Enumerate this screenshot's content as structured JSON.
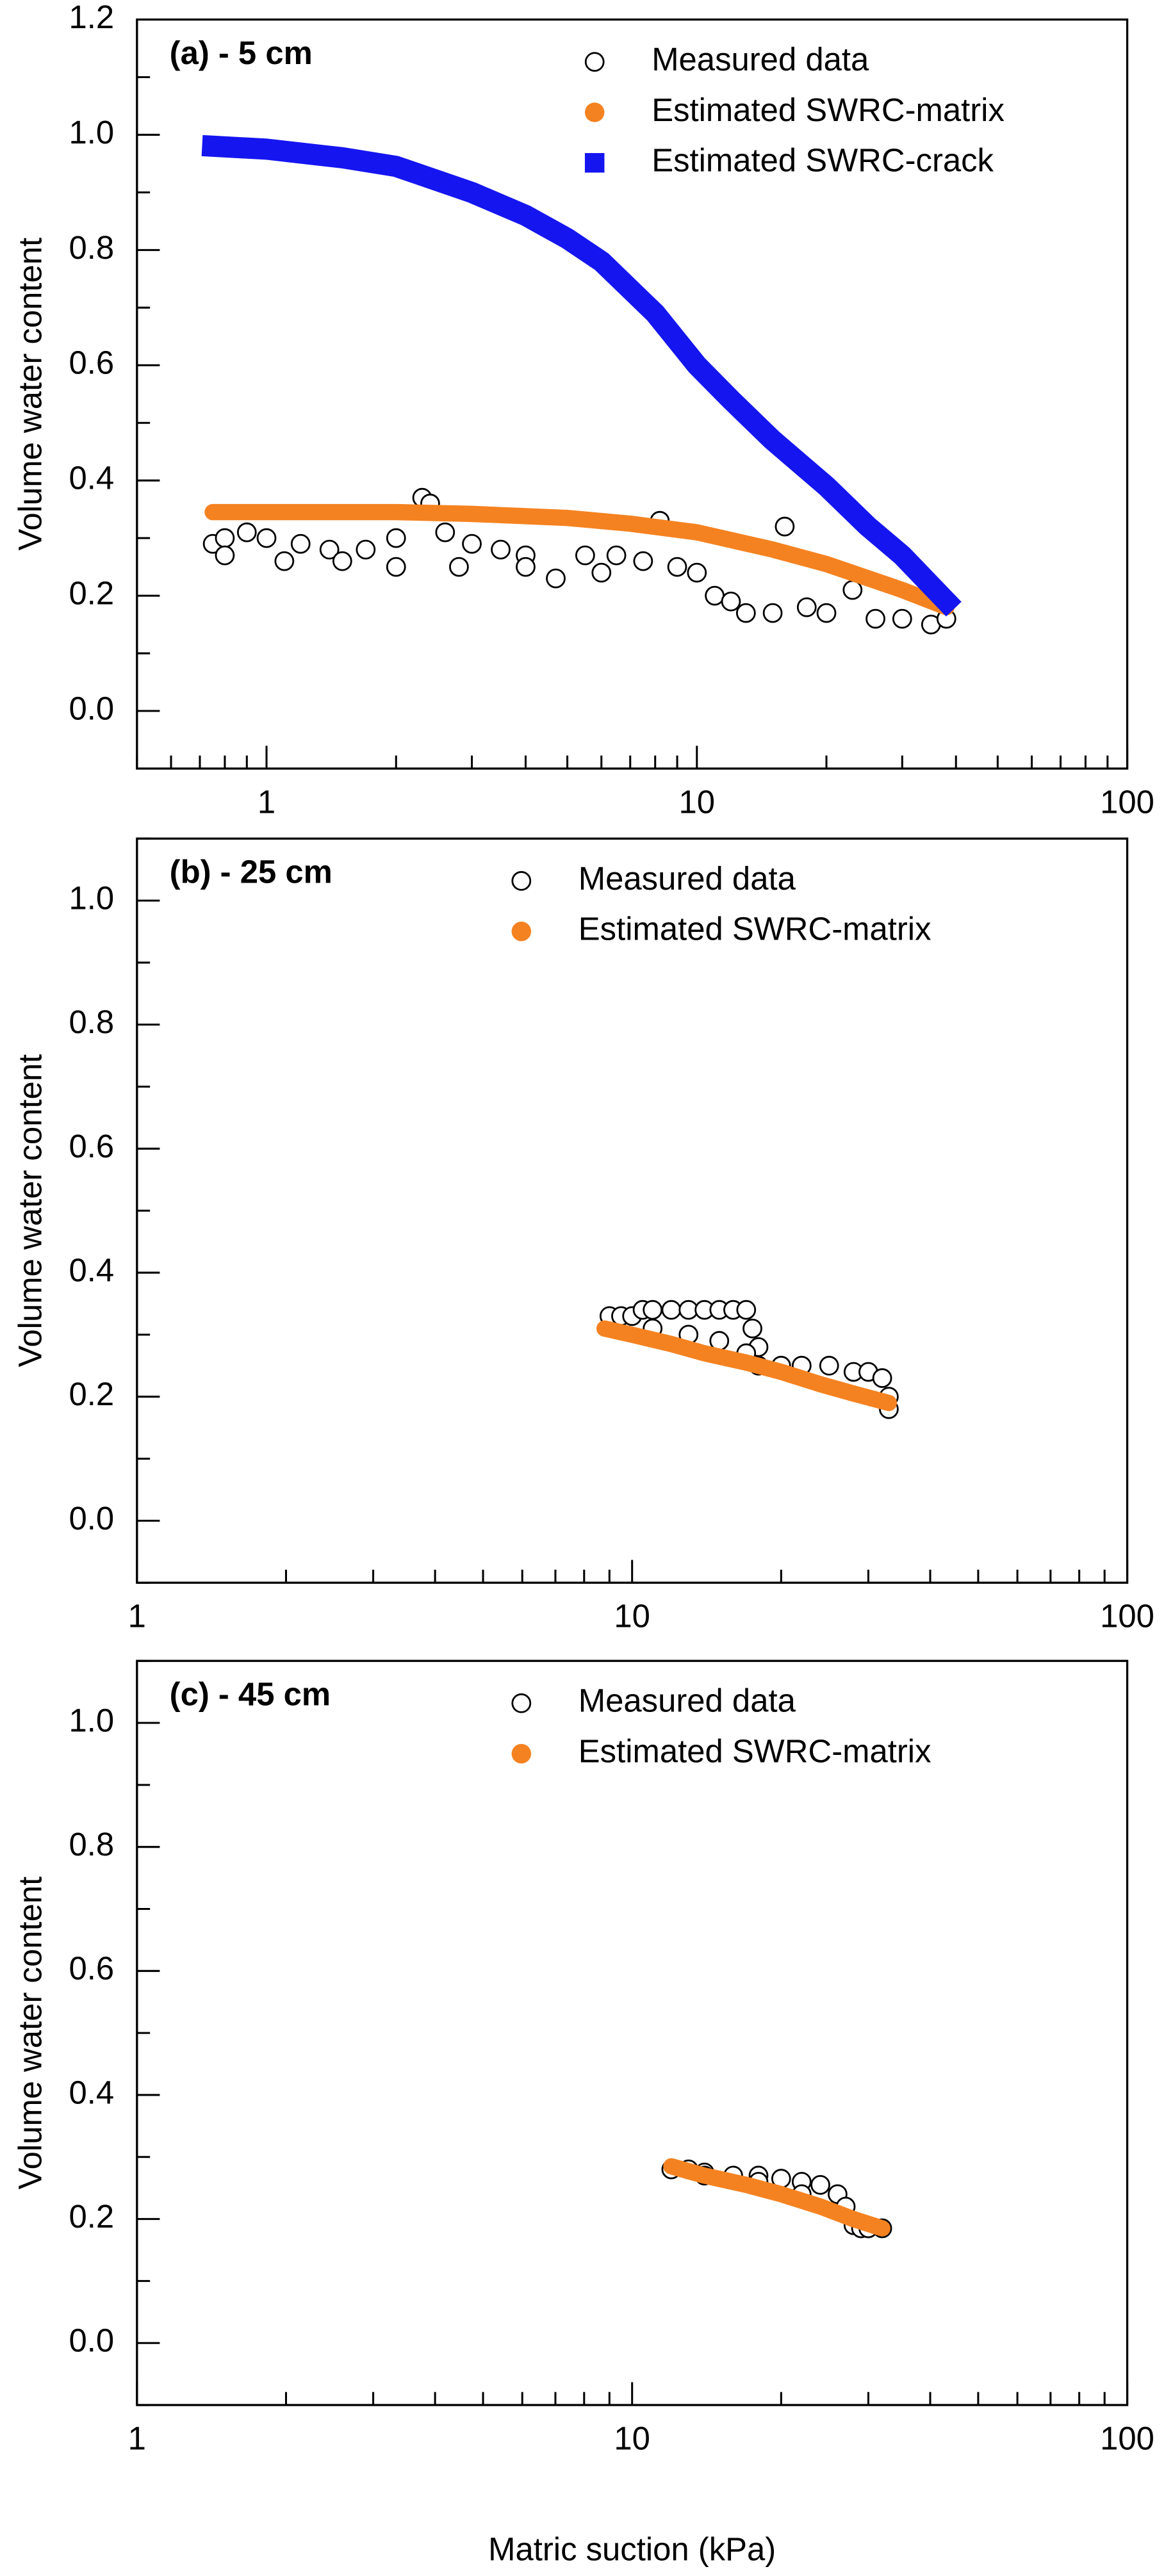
{
  "chart_data": [
    {
      "type": "scatter",
      "title": "(a) - 5 cm",
      "ylabel": "Volume water content",
      "xscale": "log",
      "xlim": [
        0.5,
        100
      ],
      "xticks": [
        1,
        10,
        100
      ],
      "xminorticks": [
        0.5,
        0.6,
        0.7,
        0.8,
        0.9,
        2,
        3,
        4,
        5,
        6,
        7,
        8,
        9,
        20,
        30,
        40,
        50,
        60,
        70,
        80,
        90
      ],
      "ylim": [
        -0.1,
        1.2
      ],
      "yticks": [
        {
          "value": 0,
          "label": "0.0"
        },
        {
          "value": 0.2,
          "label": "0.2"
        },
        {
          "value": 0.4,
          "label": "0.4"
        },
        {
          "value": 0.6,
          "label": "0.6"
        },
        {
          "value": 0.8,
          "label": "0.8"
        },
        {
          "value": 1.0,
          "label": "1.0"
        },
        {
          "value": 1.2,
          "label": "1.2"
        }
      ],
      "yminorticks": [
        -0.1,
        0.1,
        0.3,
        0.5,
        0.7,
        0.9,
        1.1
      ],
      "series": [
        {
          "name": "Measured data",
          "color": "#000000",
          "mode": "open-circle",
          "x": [
            0.75,
            0.8,
            0.9,
            1.0,
            1.2,
            1.4,
            1.7,
            2.0,
            2.3,
            2.4,
            2.6,
            3.0,
            3.5,
            4.0,
            4.7,
            5.5,
            6.5,
            7.5,
            8.2,
            9.0,
            10,
            11,
            12,
            13,
            15,
            16,
            18,
            20,
            23,
            26,
            30,
            35,
            38,
            0.8,
            1.1,
            1.5,
            2.0,
            2.8,
            4.0,
            6.0
          ],
          "values": [
            0.29,
            0.3,
            0.31,
            0.3,
            0.29,
            0.28,
            0.28,
            0.3,
            0.37,
            0.36,
            0.31,
            0.29,
            0.28,
            0.27,
            0.23,
            0.27,
            0.27,
            0.26,
            0.33,
            0.25,
            0.24,
            0.2,
            0.19,
            0.17,
            0.17,
            0.32,
            0.18,
            0.17,
            0.21,
            0.16,
            0.16,
            0.15,
            0.16,
            0.27,
            0.26,
            0.26,
            0.25,
            0.25,
            0.25,
            0.24
          ]
        },
        {
          "name": "Estimated SWRC-matrix",
          "color": "#f58220",
          "mode": "thick-line",
          "x": [
            0.75,
            1,
            2,
            3,
            5,
            7,
            10,
            15,
            20,
            30,
            38
          ],
          "values": [
            0.345,
            0.345,
            0.345,
            0.342,
            0.335,
            0.325,
            0.31,
            0.28,
            0.255,
            0.21,
            0.18
          ]
        },
        {
          "name": "Estimated SWRC-crack",
          "color": "#1515f0",
          "mode": "thick-line-square",
          "x": [
            0.75,
            1,
            1.5,
            2,
            3,
            4,
            5,
            6,
            8,
            10,
            12,
            15,
            20,
            25,
            30,
            38
          ],
          "values": [
            0.98,
            0.975,
            0.96,
            0.945,
            0.9,
            0.86,
            0.82,
            0.78,
            0.69,
            0.6,
            0.54,
            0.47,
            0.39,
            0.32,
            0.27,
            0.19
          ]
        }
      ]
    },
    {
      "type": "scatter",
      "title": "(b) - 25 cm",
      "ylabel": "Volume water content",
      "xscale": "log",
      "xlim": [
        1,
        100
      ],
      "xticks": [
        1,
        10,
        100
      ],
      "xminorticks": [
        2,
        3,
        4,
        5,
        6,
        7,
        8,
        9,
        20,
        30,
        40,
        50,
        60,
        70,
        80,
        90
      ],
      "ylim": [
        -0.1,
        1.1
      ],
      "yticks": [
        {
          "value": 0,
          "label": "0.0"
        },
        {
          "value": 0.2,
          "label": "0.2"
        },
        {
          "value": 0.4,
          "label": "0.4"
        },
        {
          "value": 0.6,
          "label": "0.6"
        },
        {
          "value": 0.8,
          "label": "0.8"
        },
        {
          "value": 1.0,
          "label": "1.0"
        }
      ],
      "yminorticks": [
        -0.1,
        0.1,
        0.3,
        0.5,
        0.7,
        0.9,
        1.1
      ],
      "series": [
        {
          "name": "Measured data",
          "color": "#000000",
          "mode": "open-circle",
          "x": [
            9,
            9.5,
            10,
            10.5,
            11,
            12,
            13,
            14,
            15,
            16,
            17,
            17.5,
            18,
            18,
            20,
            22,
            25,
            28,
            30,
            32,
            33,
            33,
            11,
            13,
            15,
            17
          ],
          "values": [
            0.33,
            0.33,
            0.33,
            0.34,
            0.34,
            0.34,
            0.34,
            0.34,
            0.34,
            0.34,
            0.34,
            0.31,
            0.28,
            0.25,
            0.25,
            0.25,
            0.25,
            0.24,
            0.24,
            0.23,
            0.2,
            0.18,
            0.31,
            0.3,
            0.29,
            0.27
          ]
        },
        {
          "name": "Estimated SWRC-matrix",
          "color": "#f58220",
          "mode": "thick-line",
          "x": [
            8.8,
            10,
            12,
            14,
            17,
            20,
            24,
            28,
            33
          ],
          "values": [
            0.31,
            0.3,
            0.285,
            0.27,
            0.255,
            0.24,
            0.22,
            0.205,
            0.19
          ]
        }
      ]
    },
    {
      "type": "scatter",
      "title": "(c) - 45 cm",
      "ylabel": "Volume water content",
      "xlabel": "Matric suction (kPa)",
      "xscale": "log",
      "xlim": [
        1,
        100
      ],
      "xticks": [
        1,
        10,
        100
      ],
      "xminorticks": [
        2,
        3,
        4,
        5,
        6,
        7,
        8,
        9,
        20,
        30,
        40,
        50,
        60,
        70,
        80,
        90
      ],
      "ylim": [
        -0.1,
        1.1
      ],
      "yticks": [
        {
          "value": 0,
          "label": "0.0"
        },
        {
          "value": 0.2,
          "label": "0.2"
        },
        {
          "value": 0.4,
          "label": "0.4"
        },
        {
          "value": 0.6,
          "label": "0.6"
        },
        {
          "value": 0.8,
          "label": "0.8"
        },
        {
          "value": 1.0,
          "label": "1.0"
        }
      ],
      "yminorticks": [
        -0.1,
        0.1,
        0.3,
        0.5,
        0.7,
        0.9,
        1.1
      ],
      "series": [
        {
          "name": "Measured data",
          "color": "#000000",
          "mode": "open-circle",
          "x": [
            12,
            13,
            14,
            16,
            18,
            20,
            22,
            24,
            26,
            27,
            28,
            29,
            30,
            32,
            14,
            18,
            22
          ],
          "values": [
            0.28,
            0.28,
            0.275,
            0.27,
            0.27,
            0.265,
            0.26,
            0.255,
            0.24,
            0.22,
            0.19,
            0.185,
            0.185,
            0.185,
            0.27,
            0.26,
            0.24
          ]
        },
        {
          "name": "Estimated SWRC-matrix",
          "color": "#f58220",
          "mode": "thick-line",
          "x": [
            12,
            14,
            17,
            20,
            24,
            28,
            32
          ],
          "values": [
            0.285,
            0.27,
            0.255,
            0.24,
            0.22,
            0.2,
            0.185
          ]
        }
      ]
    }
  ]
}
